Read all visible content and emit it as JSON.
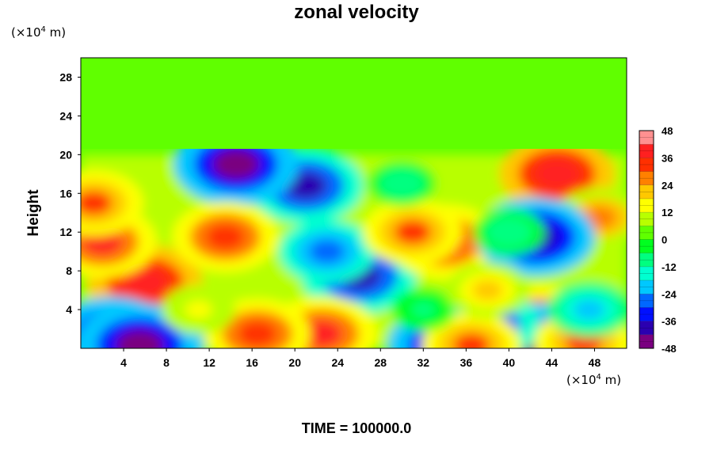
{
  "chart_data": {
    "type": "heatmap",
    "title": "zonal velocity",
    "ylabel": "Height",
    "xlabel": "",
    "x_unit": {
      "prefix": "(×10",
      "exp": "4",
      "suffix": " m)"
    },
    "y_unit": {
      "prefix": "(×10",
      "exp": "4",
      "suffix": " m)"
    },
    "footer": "TIME = 100000.0",
    "xlim": [
      0,
      51
    ],
    "ylim": [
      0,
      30
    ],
    "x_ticks": [
      4,
      8,
      12,
      16,
      20,
      24,
      28,
      32,
      36,
      40,
      44,
      48
    ],
    "y_ticks": [
      4,
      8,
      12,
      16,
      20,
      24,
      28
    ],
    "colorbar": {
      "min": -48,
      "max": 48,
      "ticks": [
        48,
        36,
        24,
        12,
        0,
        -12,
        -24,
        -36,
        -48
      ],
      "colors": [
        "#7a0080",
        "#2b00b0",
        "#0010ff",
        "#0068ff",
        "#00c8ff",
        "#00ffd0",
        "#00ff80",
        "#00ff20",
        "#60ff00",
        "#b8ff00",
        "#ffff00",
        "#ffc800",
        "#ff8000",
        "#ff3000",
        "#ff2020",
        "#ff9090"
      ]
    },
    "background_value": 1,
    "features": [
      {
        "x": 21,
        "y": 16.8,
        "value": -40
      },
      {
        "x": 14.5,
        "y": 19,
        "value": -46
      },
      {
        "x": 26,
        "y": 7.5,
        "value": -40
      },
      {
        "x": 23,
        "y": 10,
        "value": -28
      },
      {
        "x": 34,
        "y": 11,
        "value": 38
      },
      {
        "x": 31,
        "y": 12,
        "value": 30
      },
      {
        "x": 6,
        "y": 6.8,
        "value": 40
      },
      {
        "x": 2,
        "y": 11,
        "value": 36
      },
      {
        "x": 22.5,
        "y": 1.5,
        "value": 38
      },
      {
        "x": 16.5,
        "y": 1.5,
        "value": 34
      },
      {
        "x": 3,
        "y": 1.2,
        "value": -44
      },
      {
        "x": 5.5,
        "y": 0.3,
        "value": -48
      },
      {
        "x": 44.5,
        "y": 18,
        "value": 40
      },
      {
        "x": 48.5,
        "y": 13.5,
        "value": 24
      },
      {
        "x": 42.5,
        "y": 11.5,
        "value": -42
      },
      {
        "x": 43,
        "y": 2.8,
        "value": 36
      },
      {
        "x": 43,
        "y": 0.3,
        "value": -48
      },
      {
        "x": 37.5,
        "y": 2.5,
        "value": -40
      },
      {
        "x": 13.5,
        "y": 11.5,
        "value": 34
      },
      {
        "x": 1.2,
        "y": 15,
        "value": 30
      },
      {
        "x": 34.5,
        "y": 0.3,
        "value": -46
      },
      {
        "x": 36.5,
        "y": 0.3,
        "value": 30
      },
      {
        "x": 47,
        "y": 0.6,
        "value": 30
      },
      {
        "x": 47.5,
        "y": 4,
        "value": -20
      },
      {
        "x": 32,
        "y": 4,
        "value": -8
      },
      {
        "x": 40,
        "y": 12,
        "value": -12
      },
      {
        "x": 38,
        "y": 6,
        "value": 20
      },
      {
        "x": 11,
        "y": 4,
        "value": 14
      },
      {
        "x": 30,
        "y": 17,
        "value": -10
      }
    ]
  }
}
